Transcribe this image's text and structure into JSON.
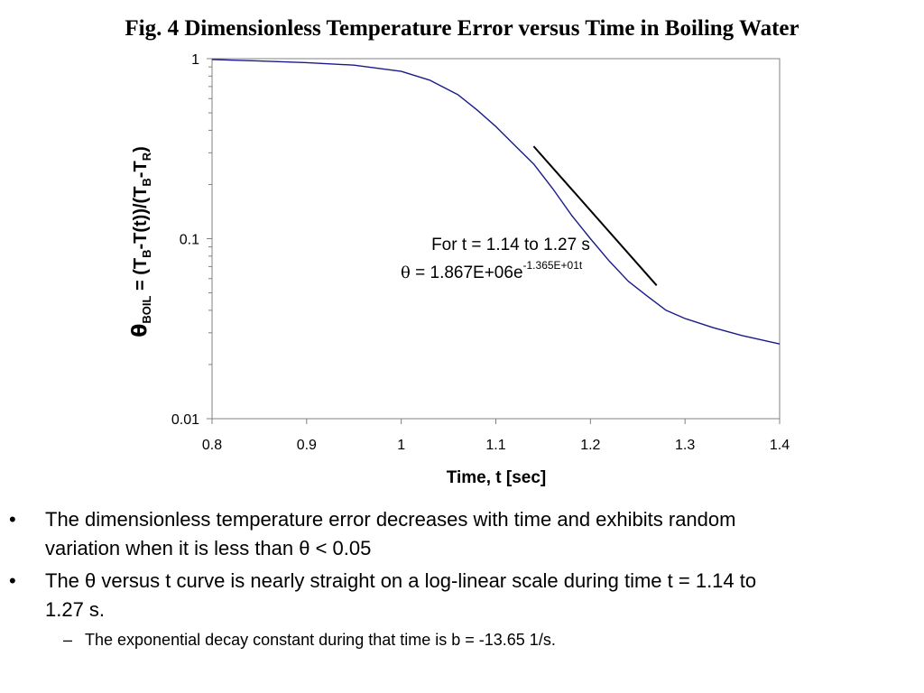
{
  "figure": {
    "title": "Fig. 4 Dimensionless Temperature Error versus Time in Boiling Water"
  },
  "chart_data": {
    "type": "line",
    "title": "Fig. 4 Dimensionless Temperature Error versus Time in Boiling Water",
    "xlabel": "Time, t [sec]",
    "ylabel": {
      "theta": "θ",
      "boil_sub": "BOIL",
      "mid": " = (T",
      "b_sub": "B",
      "mid2": "-T(t))/(T",
      "b_sub2": "B",
      "dash": "-T",
      "r_sub": "R",
      "close": ")"
    },
    "xlim": [
      0.8,
      1.4
    ],
    "ylim": [
      0.01,
      1
    ],
    "yscale": "log",
    "x_ticks": [
      "0.8",
      "0.9",
      "1",
      "1.1",
      "1.2",
      "1.3",
      "1.4"
    ],
    "y_ticks": [
      "1",
      "0.1",
      "0.01"
    ],
    "grid": false,
    "series": [
      {
        "color": "#1a1a8c",
        "x": [
          0.8,
          0.85,
          0.9,
          0.95,
          1.0,
          1.03,
          1.06,
          1.08,
          1.1,
          1.12,
          1.14,
          1.16,
          1.18,
          1.2,
          1.22,
          1.24,
          1.26,
          1.28,
          1.3,
          1.33,
          1.36,
          1.4
        ],
        "y": [
          0.99,
          0.97,
          0.95,
          0.92,
          0.85,
          0.76,
          0.63,
          0.52,
          0.42,
          0.33,
          0.26,
          0.19,
          0.135,
          0.1,
          0.075,
          0.058,
          0.048,
          0.04,
          0.036,
          0.032,
          0.029,
          0.026
        ]
      },
      {
        "color": "#000000",
        "x": [
          1.14,
          1.27
        ],
        "y": [
          0.326,
          0.055
        ]
      }
    ],
    "annotation": {
      "line1": "For t = 1.14 to 1.27 s",
      "theta": "θ",
      "line2": " = 1.867E+06e",
      "exponent": "-1.365E+01t"
    }
  },
  "bullets": [
    {
      "mark": "•",
      "line1": "The dimensionless temperature error decreases with time and exhibits random",
      "line2": "variation when it is less than θ < 0.05"
    },
    {
      "mark": "•",
      "line1": "The θ  versus t curve is nearly straight on a log-linear scale during time t = 1.14 to",
      "line2": "1.27 s."
    }
  ],
  "sub_bullet": {
    "mark": "–",
    "text": "The exponential decay constant during that time is b = -13.65 1/s."
  }
}
